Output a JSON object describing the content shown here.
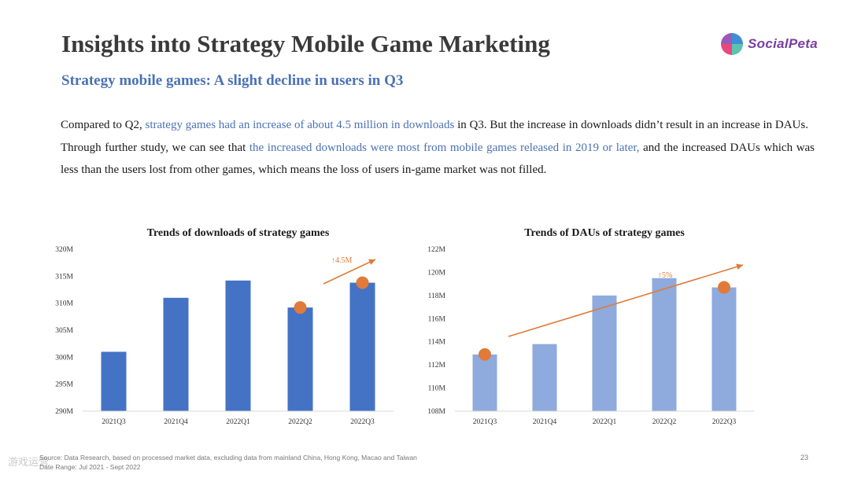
{
  "slide": {
    "title": "Insights into Strategy Mobile Game Marketing",
    "subtitle": "Strategy mobile games: A slight decline in users in Q3",
    "logo_text": "SocialPeta",
    "page_number": "23",
    "paragraph1": {
      "part1": "Compared to Q2, ",
      "highlight": "strategy games had an increase of about 4.5 million in downloads",
      "part2": " in Q3. But the increase in downloads didn’t result in an increase in DAUs."
    },
    "paragraph2": {
      "part1": "Through further study, we can see that ",
      "highlight": "the increased downloads were most from mobile games released in 2019 or later,",
      "part2": " and the increased DAUs which was less than the users lost from other games, which means the loss of users in-game market was not filled."
    },
    "footer": {
      "source": "Source: Data Research, based on processed market data, excluding data from mainland China, Hong Kong, Macao and Taiwan",
      "date_range": "Date Range: Jul 2021 - Sept 2022"
    },
    "watermark": "游戏运营"
  },
  "colors": {
    "title": "#3a3a3a",
    "accent_blue": "#4a72b4",
    "bar_dark": "#4472c4",
    "bar_light": "#8faadc",
    "marker_orange": "#e07b39",
    "logo_purple": "#7b3fa0"
  },
  "chart_data": [
    {
      "type": "bar",
      "title": "Trends of downloads of strategy games",
      "categories": [
        "2021Q3",
        "2021Q4",
        "2022Q1",
        "2022Q2",
        "2022Q3"
      ],
      "values": [
        301,
        311,
        314.2,
        309.2,
        313.8
      ],
      "unit": "M",
      "ylim": [
        290,
        320
      ],
      "yticks": [
        "320M",
        "315M",
        "310M",
        "305M",
        "300M",
        "295M",
        "290M"
      ],
      "markers": [
        {
          "category": "2022Q2",
          "value": 309.2
        },
        {
          "category": "2022Q3",
          "value": 313.8
        }
      ],
      "trend_annotation": "↑4.5M",
      "grid": false,
      "bar_color": "#4472c4"
    },
    {
      "type": "bar",
      "title": "Trends of DAUs of strategy games",
      "categories": [
        "2021Q3",
        "2021Q4",
        "2022Q1",
        "2022Q2",
        "2022Q3"
      ],
      "values": [
        112.9,
        113.8,
        118,
        119.5,
        118.7
      ],
      "unit": "M",
      "ylim": [
        108,
        122
      ],
      "yticks": [
        "122M",
        "120M",
        "118M",
        "116M",
        "114M",
        "112M",
        "110M",
        "108M"
      ],
      "markers": [
        {
          "category": "2021Q3",
          "value": 112.9
        },
        {
          "category": "2022Q3",
          "value": 118.7
        }
      ],
      "trend_annotation": "↑5%",
      "grid": false,
      "bar_color": "#8faadc"
    }
  ]
}
